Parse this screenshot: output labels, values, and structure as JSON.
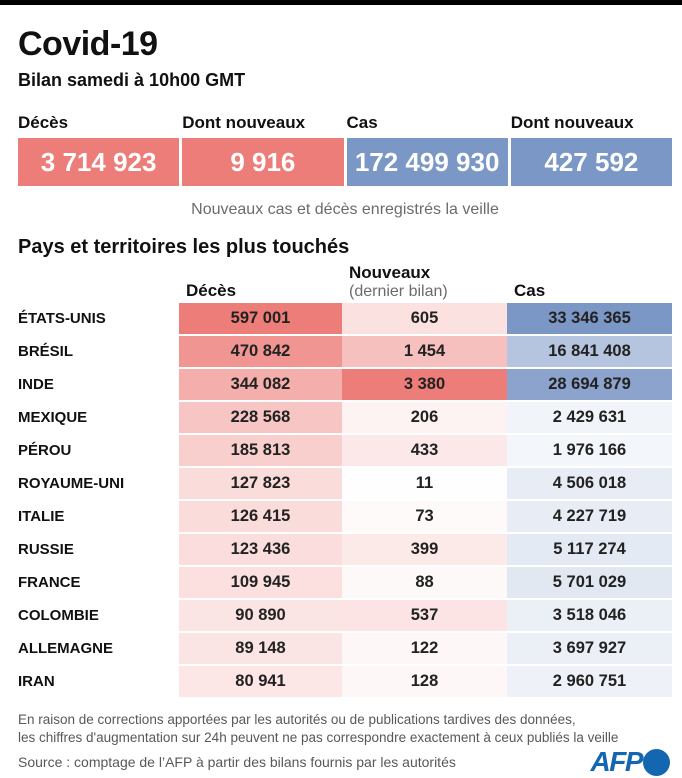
{
  "header": {
    "title": "Covid-19",
    "subtitle": "Bilan samedi à 10h00 GMT"
  },
  "summary": {
    "boxes": [
      {
        "label": "Décès",
        "value": 3714923,
        "kind": "deaths"
      },
      {
        "label": "Dont nouveaux",
        "value": 9916,
        "kind": "deaths"
      },
      {
        "label": "Cas",
        "value": 172499930,
        "kind": "cases"
      },
      {
        "label": "Dont nouveaux",
        "value": 427592,
        "kind": "cases"
      }
    ],
    "note": "Nouveaux cas et décès enregistrés la veille"
  },
  "chart_data": {
    "type": "heatmap",
    "title": "Pays et territoires les plus touchés",
    "columns": {
      "deaths_label": "Décès",
      "new_label": "Nouveaux",
      "new_sublabel": "(dernier bilan)",
      "cases_label": "Cas"
    },
    "rows": [
      {
        "country": "ÉTATS-UNIS",
        "deaths": 597001,
        "new": 605,
        "cases": 33346365
      },
      {
        "country": "BRÉSIL",
        "deaths": 470842,
        "new": 1454,
        "cases": 16841408
      },
      {
        "country": "INDE",
        "deaths": 344082,
        "new": 3380,
        "cases": 28694879
      },
      {
        "country": "MEXIQUE",
        "deaths": 228568,
        "new": 206,
        "cases": 2429631
      },
      {
        "country": "PÉROU",
        "deaths": 185813,
        "new": 433,
        "cases": 1976166
      },
      {
        "country": "ROYAUME-UNI",
        "deaths": 127823,
        "new": 11,
        "cases": 4506018
      },
      {
        "country": "ITALIE",
        "deaths": 126415,
        "new": 73,
        "cases": 4227719
      },
      {
        "country": "RUSSIE",
        "deaths": 123436,
        "new": 399,
        "cases": 5117274
      },
      {
        "country": "FRANCE",
        "deaths": 109945,
        "new": 88,
        "cases": 5701029
      },
      {
        "country": "COLOMBIE",
        "deaths": 90890,
        "new": 537,
        "cases": 3518046
      },
      {
        "country": "ALLEMAGNE",
        "deaths": 89148,
        "new": 122,
        "cases": 3697927
      },
      {
        "country": "IRAN",
        "deaths": 80941,
        "new": 128,
        "cases": 2960751
      }
    ],
    "max": {
      "deaths": 597001,
      "new": 3380,
      "cases": 33346365
    },
    "legend_position": "none",
    "grid": false
  },
  "footer": {
    "line1": "En raison de corrections apportées par les autorités ou de publications tardives des données,",
    "line2": "les chiffres d'augmentation sur 24h peuvent ne pas correspondre exactement à ceux publiés la veille",
    "source": "Source : comptage de l’AFP à partir des bilans fournis par les autorités",
    "logo_text": "AFP"
  },
  "colors": {
    "deaths_red": "#ed7d79",
    "cases_blue": "#7b97c6",
    "afp_blue": "#1566b1",
    "topbar_black": "#000000",
    "muted_gray": "#6b6b6b"
  }
}
